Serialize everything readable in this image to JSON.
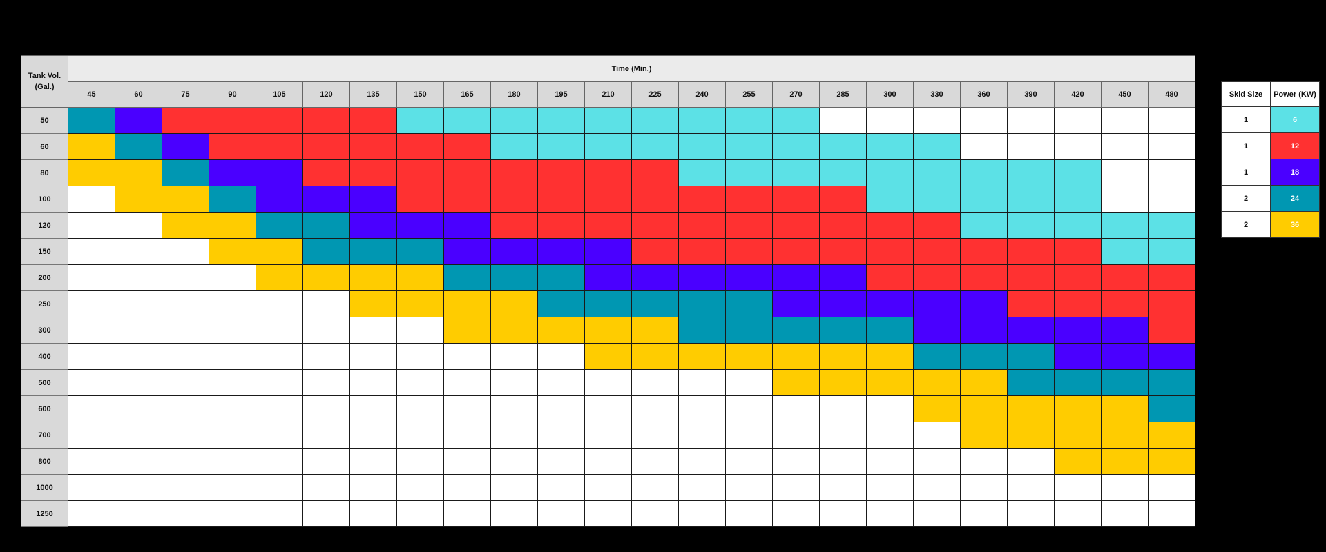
{
  "colors": {
    "6": "#5ce1e6",
    "12": "#ff3131",
    "18": "#4a00ff",
    "24": "#0097b2",
    "36": "#ffcc00",
    "0": "#ffffff"
  },
  "table": {
    "corner_label_line1": "Tank Vol.",
    "corner_label_line2": "(Gal.)",
    "title": "Time (Min.)"
  },
  "legend": {
    "headers": [
      "Skid Size",
      "Power (KW)"
    ],
    "rows": [
      {
        "skid_size": "1",
        "power": "6"
      },
      {
        "skid_size": "1",
        "power": "12"
      },
      {
        "skid_size": "1",
        "power": "18"
      },
      {
        "skid_size": "2",
        "power": "24"
      },
      {
        "skid_size": "2",
        "power": "36"
      }
    ]
  },
  "chart_data": {
    "type": "heatmap",
    "title": "Time (Min.)",
    "xlabel": "Time (Min.)",
    "ylabel": "Tank Vol. (Gal.)",
    "x": [
      "45",
      "60",
      "75",
      "90",
      "105",
      "120",
      "135",
      "150",
      "165",
      "180",
      "195",
      "210",
      "225",
      "240",
      "255",
      "270",
      "285",
      "300",
      "330",
      "360",
      "390",
      "420",
      "450",
      "480"
    ],
    "y": [
      "50",
      "60",
      "80",
      "100",
      "120",
      "150",
      "200",
      "250",
      "300",
      "400",
      "500",
      "600",
      "700",
      "800",
      "1000",
      "1250"
    ],
    "value_meaning": "Required heater power (KW); 0 = not applicable (blank cell)",
    "legend": [
      {
        "skid_size": 1,
        "power_kw": 6,
        "color": "#5ce1e6"
      },
      {
        "skid_size": 1,
        "power_kw": 12,
        "color": "#ff3131"
      },
      {
        "skid_size": 1,
        "power_kw": 18,
        "color": "#4a00ff"
      },
      {
        "skid_size": 2,
        "power_kw": 24,
        "color": "#0097b2"
      },
      {
        "skid_size": 2,
        "power_kw": 36,
        "color": "#ffcc00"
      }
    ],
    "values": [
      [
        24,
        18,
        12,
        12,
        12,
        12,
        12,
        6,
        6,
        6,
        6,
        6,
        6,
        6,
        6,
        6,
        0,
        0,
        0,
        0,
        0,
        0,
        0,
        0
      ],
      [
        36,
        24,
        18,
        12,
        12,
        12,
        12,
        12,
        12,
        6,
        6,
        6,
        6,
        6,
        6,
        6,
        6,
        6,
        6,
        0,
        0,
        0,
        0,
        0
      ],
      [
        36,
        36,
        24,
        18,
        18,
        12,
        12,
        12,
        12,
        12,
        12,
        12,
        12,
        6,
        6,
        6,
        6,
        6,
        6,
        6,
        6,
        6,
        0,
        0
      ],
      [
        0,
        36,
        36,
        24,
        18,
        18,
        18,
        12,
        12,
        12,
        12,
        12,
        12,
        12,
        12,
        12,
        12,
        6,
        6,
        6,
        6,
        6,
        0,
        0
      ],
      [
        0,
        0,
        36,
        36,
        24,
        24,
        18,
        18,
        18,
        12,
        12,
        12,
        12,
        12,
        12,
        12,
        12,
        12,
        12,
        6,
        6,
        6,
        6,
        6
      ],
      [
        0,
        0,
        0,
        36,
        36,
        24,
        24,
        24,
        18,
        18,
        18,
        18,
        12,
        12,
        12,
        12,
        12,
        12,
        12,
        12,
        12,
        12,
        6,
        6
      ],
      [
        0,
        0,
        0,
        0,
        36,
        36,
        36,
        36,
        24,
        24,
        24,
        18,
        18,
        18,
        18,
        18,
        18,
        12,
        12,
        12,
        12,
        12,
        12,
        12
      ],
      [
        0,
        0,
        0,
        0,
        0,
        0,
        36,
        36,
        36,
        36,
        24,
        24,
        24,
        24,
        24,
        18,
        18,
        18,
        18,
        18,
        12,
        12,
        12,
        12
      ],
      [
        0,
        0,
        0,
        0,
        0,
        0,
        0,
        0,
        36,
        36,
        36,
        36,
        36,
        24,
        24,
        24,
        24,
        24,
        18,
        18,
        18,
        18,
        18,
        12
      ],
      [
        0,
        0,
        0,
        0,
        0,
        0,
        0,
        0,
        0,
        0,
        0,
        36,
        36,
        36,
        36,
        36,
        36,
        36,
        24,
        24,
        24,
        18,
        18,
        18
      ],
      [
        0,
        0,
        0,
        0,
        0,
        0,
        0,
        0,
        0,
        0,
        0,
        0,
        0,
        0,
        0,
        36,
        36,
        36,
        36,
        36,
        24,
        24,
        24,
        24
      ],
      [
        0,
        0,
        0,
        0,
        0,
        0,
        0,
        0,
        0,
        0,
        0,
        0,
        0,
        0,
        0,
        0,
        0,
        0,
        36,
        36,
        36,
        36,
        36,
        24
      ],
      [
        0,
        0,
        0,
        0,
        0,
        0,
        0,
        0,
        0,
        0,
        0,
        0,
        0,
        0,
        0,
        0,
        0,
        0,
        0,
        36,
        36,
        36,
        36,
        36
      ],
      [
        0,
        0,
        0,
        0,
        0,
        0,
        0,
        0,
        0,
        0,
        0,
        0,
        0,
        0,
        0,
        0,
        0,
        0,
        0,
        0,
        0,
        36,
        36,
        36
      ],
      [
        0,
        0,
        0,
        0,
        0,
        0,
        0,
        0,
        0,
        0,
        0,
        0,
        0,
        0,
        0,
        0,
        0,
        0,
        0,
        0,
        0,
        0,
        0,
        0
      ],
      [
        0,
        0,
        0,
        0,
        0,
        0,
        0,
        0,
        0,
        0,
        0,
        0,
        0,
        0,
        0,
        0,
        0,
        0,
        0,
        0,
        0,
        0,
        0,
        0
      ]
    ]
  }
}
